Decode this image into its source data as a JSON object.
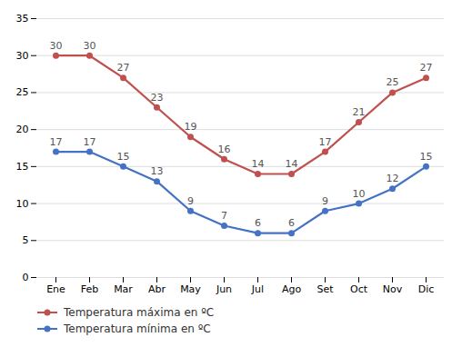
{
  "chart_data": {
    "type": "line",
    "categories": [
      "Ene",
      "Feb",
      "Mar",
      "Abr",
      "May",
      "Jun",
      "Jul",
      "Ago",
      "Set",
      "Oct",
      "Nov",
      "Dic"
    ],
    "series": [
      {
        "name": "Temperatura máxima en ºC",
        "color": "#c0504d",
        "marker": "circle",
        "values": [
          30,
          30,
          27,
          23,
          19,
          16,
          14,
          14,
          17,
          21,
          25,
          27
        ]
      },
      {
        "name": "Temperatura mínima en ºC",
        "color": "#4472c4",
        "marker": "circle",
        "values": [
          17,
          17,
          15,
          13,
          9,
          7,
          6,
          6,
          9,
          10,
          12,
          15
        ]
      }
    ],
    "ylim": [
      0,
      35
    ],
    "yticks": [
      0,
      5,
      10,
      15,
      20,
      25,
      30,
      35
    ],
    "grid": true,
    "data_labels": true,
    "legend": "lower left"
  }
}
